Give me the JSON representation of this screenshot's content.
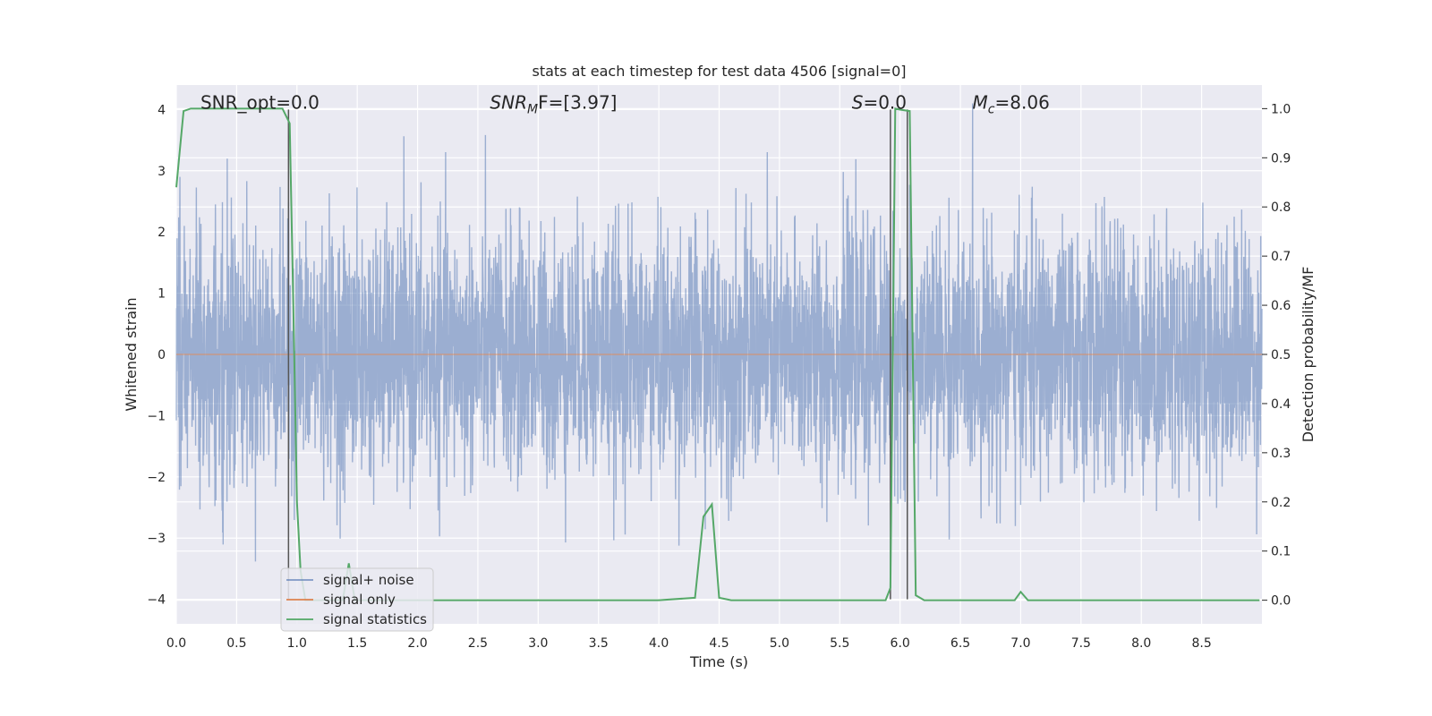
{
  "chart_data": {
    "type": "line",
    "title": "stats at each timestep for test data 4506 [signal=0]",
    "xlabel": "Time (s)",
    "ylabel": "Whitened strain",
    "y2label": "Detection probability/MF",
    "xlim": [
      0,
      9.0
    ],
    "ylim": [
      -4.4,
      4.4
    ],
    "y2lim": [
      -0.048,
      1.048
    ],
    "xticks": [
      0.0,
      0.5,
      1.0,
      1.5,
      2.0,
      2.5,
      3.0,
      3.5,
      4.0,
      4.5,
      5.0,
      5.5,
      6.0,
      6.5,
      7.0,
      7.5,
      8.0,
      8.5
    ],
    "xtick_labels": [
      "0.0",
      "0.5",
      "1.0",
      "1.5",
      "2.0",
      "2.5",
      "3.0",
      "3.5",
      "4.0",
      "4.5",
      "5.0",
      "5.5",
      "6.0",
      "6.5",
      "7.0",
      "7.5",
      "8.0",
      "8.5"
    ],
    "yticks": [
      -4,
      -3,
      -2,
      -1,
      0,
      1,
      2,
      3,
      4
    ],
    "ytick_labels": [
      "−4",
      "−3",
      "−2",
      "−1",
      "0",
      "1",
      "2",
      "3",
      "4"
    ],
    "y2ticks": [
      0.0,
      0.1,
      0.2,
      0.3,
      0.4,
      0.5,
      0.6,
      0.7,
      0.8,
      0.9,
      1.0
    ],
    "y2tick_labels": [
      "0.0",
      "0.1",
      "0.2",
      "0.3",
      "0.4",
      "0.5",
      "0.6",
      "0.7",
      "0.8",
      "0.9",
      "1.0"
    ],
    "grid": true,
    "legend": {
      "placement": "lower-left",
      "entries": [
        {
          "label": "signal+ noise",
          "color": "#4c72b0"
        },
        {
          "label": "signal only",
          "color": "#dd8452"
        },
        {
          "label": "signal statistics",
          "color": "#55a868"
        }
      ]
    },
    "annotations": [
      {
        "text": "SNR_opt=0.0",
        "x": 0.2,
        "y": 4.1
      },
      {
        "text_main": "SNR",
        "text_sub": "M",
        "text_rest": "F=[3.97]",
        "x": 2.6,
        "y": 4.1
      },
      {
        "text_main": "S",
        "text_rest": "=0.0",
        "x": 5.6,
        "y": 4.1
      },
      {
        "text_main": "M",
        "text_sub": "c",
        "text_rest": "=8.06",
        "x": 6.6,
        "y": 4.1
      }
    ],
    "vlines": [
      {
        "x": 0.93,
        "color": "#555555"
      },
      {
        "x": 5.92,
        "color": "#555555"
      },
      {
        "x": 6.06,
        "color": "#555555"
      }
    ],
    "series": [
      {
        "name": "signal+ noise",
        "color": "#4c72b0",
        "axis": "left",
        "description_kind": "noise",
        "x_range": [
          0.0,
          9.0
        ],
        "sigma": 1.0,
        "peak_max": 4.1,
        "peak_min": -4.0
      },
      {
        "name": "signal only",
        "color": "#dd8452",
        "axis": "left",
        "x": [
          0.0,
          9.0
        ],
        "y": [
          0.0,
          0.0
        ]
      },
      {
        "name": "signal statistics",
        "color": "#55a868",
        "axis": "right",
        "x": [
          0.0,
          0.06,
          0.12,
          0.5,
          0.88,
          0.94,
          0.97,
          1.0,
          1.03,
          1.07,
          1.25,
          1.38,
          1.43,
          1.48,
          1.6,
          2.5,
          3.4,
          4.0,
          4.3,
          4.37,
          4.44,
          4.5,
          4.6,
          5.0,
          5.5,
          5.88,
          5.92,
          5.96,
          6.0,
          6.08,
          6.13,
          6.2,
          6.5,
          6.95,
          7.0,
          7.06,
          7.5,
          8.0,
          8.5,
          8.98
        ],
        "y": [
          0.84,
          0.995,
          1.0,
          1.0,
          1.0,
          0.97,
          0.6,
          0.2,
          0.06,
          0.0,
          0.0,
          0.0,
          0.075,
          0.0,
          0.0,
          0.0,
          0.0,
          0.0,
          0.005,
          0.17,
          0.195,
          0.005,
          0.0,
          0.0,
          0.0,
          0.0,
          0.025,
          1.0,
          0.998,
          0.995,
          0.01,
          0.0,
          0.0,
          0.0,
          0.017,
          0.0,
          0.0,
          0.0,
          0.0,
          0.0
        ]
      }
    ]
  }
}
